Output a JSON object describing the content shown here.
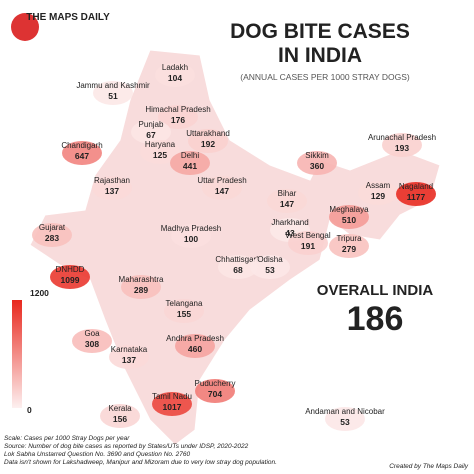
{
  "header": {
    "logo": "THE MAPS DAILY",
    "title_line1": "DOG BITE CASES",
    "title_line2": "IN INDIA",
    "subtitle": "(ANNUAL CASES PER 1000 STRAY DOGS)"
  },
  "overall": {
    "label": "OVERALL INDIA",
    "value": 186
  },
  "legend": {
    "max": 1200,
    "min": 0
  },
  "regions": [
    {
      "name": "Ladakh",
      "value": 104
    },
    {
      "name": "Jammu and Kashmir",
      "value": 51
    },
    {
      "name": "Himachal Pradesh",
      "value": 176
    },
    {
      "name": "Punjab",
      "value": 67
    },
    {
      "name": "Uttarakhand",
      "value": 192
    },
    {
      "name": "Chandigarh",
      "value": 647
    },
    {
      "name": "Haryana",
      "value": 125
    },
    {
      "name": "Delhi",
      "value": 441
    },
    {
      "name": "Rajasthan",
      "value": 137
    },
    {
      "name": "Uttar Pradesh",
      "value": 147
    },
    {
      "name": "Sikkim",
      "value": 360
    },
    {
      "name": "Arunachal Pradesh",
      "value": 193
    },
    {
      "name": "Bihar",
      "value": 147
    },
    {
      "name": "Assam",
      "value": 129
    },
    {
      "name": "Nagaland",
      "value": 1177
    },
    {
      "name": "Meghalaya",
      "value": 510
    },
    {
      "name": "Gujarat",
      "value": 283
    },
    {
      "name": "Madhya Pradesh",
      "value": 100
    },
    {
      "name": "Jharkhand",
      "value": 43
    },
    {
      "name": "West Bengal",
      "value": 191
    },
    {
      "name": "Tripura",
      "value": 279
    },
    {
      "name": "Chhattisgarh",
      "value": 68
    },
    {
      "name": "Odisha",
      "value": 53
    },
    {
      "name": "DNHDD",
      "value": 1099
    },
    {
      "name": "Maharashtra",
      "value": 289
    },
    {
      "name": "Telangana",
      "value": 155
    },
    {
      "name": "Goa",
      "value": 308
    },
    {
      "name": "Karnataka",
      "value": 137
    },
    {
      "name": "Andhra Pradesh",
      "value": 460
    },
    {
      "name": "Puducherry",
      "value": 704
    },
    {
      "name": "Kerala",
      "value": 156
    },
    {
      "name": "Tamil Nadu",
      "value": 1017
    },
    {
      "name": "Andaman and Nicobar",
      "value": 53
    }
  ],
  "footer": {
    "lines": [
      "Scale: Cases per 1000 Stray Dogs per year",
      "Source: Number of dog bite cases as reported by States/UTs under IDSP, 2020-2022",
      "Lok Sabha Unstarred Question No. 3690 and Question No. 2760",
      "Data isn't shown for Lakshadweep, Manipur and Mizoram due to very low stray dog population."
    ],
    "credit": "Created by The Maps Daily"
  }
}
